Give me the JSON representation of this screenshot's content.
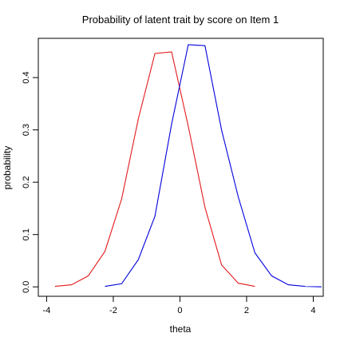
{
  "chart_data": {
    "type": "line",
    "title": "Probability of latent trait by score on Item 1",
    "xlabel": "theta",
    "ylabel": "probability",
    "xlim": [
      -4.25,
      4.3
    ],
    "ylim": [
      -0.018,
      0.475
    ],
    "x_ticks": [
      "-4",
      "-2",
      "0",
      "2",
      "4"
    ],
    "x_tick_values": [
      -4,
      -2,
      0,
      2,
      4
    ],
    "y_ticks": [
      "0.0",
      "0.1",
      "0.2",
      "0.3",
      "0.4"
    ],
    "y_tick_values": [
      0.0,
      0.1,
      0.2,
      0.3,
      0.4
    ],
    "grid": false,
    "legend": "none",
    "series": [
      {
        "color": "#e41a1c",
        "x": [
          -3.75,
          -3.25,
          -2.75,
          -2.25,
          -1.75,
          -1.25,
          -0.75,
          -0.25,
          0.25,
          0.75,
          1.25,
          1.75,
          2.25
        ],
        "y": [
          0.001,
          0.004,
          0.021,
          0.068,
          0.168,
          0.321,
          0.446,
          0.449,
          0.307,
          0.152,
          0.042,
          0.007,
          0.001
        ]
      },
      {
        "color": "#0000dd",
        "x": [
          -2.25,
          -1.75,
          -1.25,
          -0.75,
          -0.25,
          0.25,
          0.75,
          1.25,
          1.75,
          2.25,
          2.75,
          3.25,
          3.75,
          4.25
        ],
        "y": [
          0.001,
          0.006,
          0.052,
          0.135,
          0.311,
          0.463,
          0.461,
          0.3,
          0.172,
          0.065,
          0.021,
          0.004,
          0.001,
          0.0
        ]
      }
    ]
  }
}
